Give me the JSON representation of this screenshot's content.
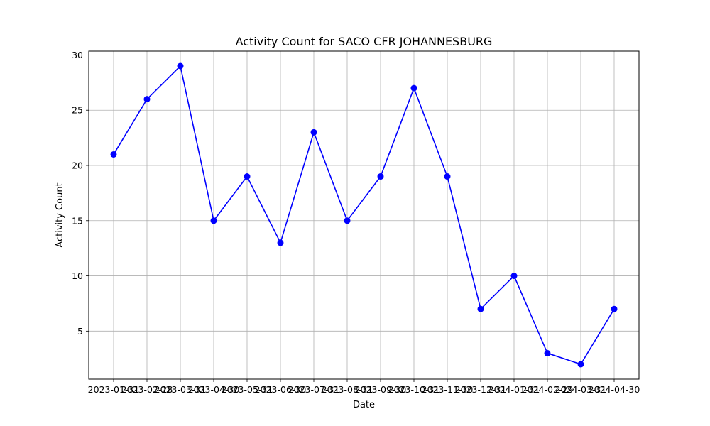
{
  "chart_data": {
    "type": "line",
    "title": "Activity Count for SACO CFR JOHANNESBURG",
    "xlabel": "Date",
    "ylabel": "Activity Count",
    "x": [
      "2023-01-31",
      "2023-02-28",
      "2023-03-31",
      "2023-04-30",
      "2023-05-31",
      "2023-06-30",
      "2023-07-31",
      "2023-08-31",
      "2023-09-30",
      "2023-10-31",
      "2023-11-30",
      "2023-12-31",
      "2024-01-31",
      "2024-02-29",
      "2024-03-31",
      "2024-04-30"
    ],
    "series": [
      {
        "values": [
          21,
          26,
          29,
          15,
          19,
          13,
          23,
          15,
          19,
          27,
          19,
          7,
          10,
          3,
          2,
          7
        ],
        "color": "#0000ff",
        "marker": "circle"
      }
    ],
    "ylim": [
      0.65,
      30.35
    ],
    "yticks": [
      5,
      10,
      15,
      20,
      25,
      30
    ],
    "grid": true,
    "legend": "none",
    "colors": {
      "grid": "#b0b0b0",
      "axes": "#000000",
      "line": "#0000ff"
    }
  }
}
